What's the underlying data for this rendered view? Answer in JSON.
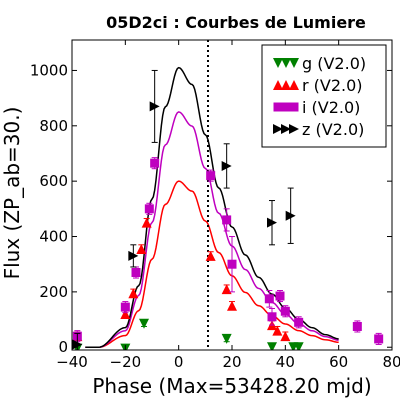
{
  "chart_data": {
    "type": "scatter",
    "title": "05D2ci : Courbes de Lumiere",
    "xlabel": "Phase (Max=53428.20 mjd)",
    "ylabel": "Flux (ZP_ab=30.)",
    "xlim": [
      -40,
      80
    ],
    "ylim": [
      -10,
      1110
    ],
    "xticks": [
      -40,
      -20,
      0,
      20,
      40,
      60,
      80
    ],
    "yticks": [
      0,
      200,
      400,
      600,
      800,
      1000
    ],
    "grid": false,
    "vline_x": 11,
    "legend_position": "top-right",
    "legend_order": [
      "g",
      "r",
      "i",
      "z"
    ],
    "series": [
      {
        "name": "g (V2.0)",
        "color": "#008000",
        "marker": "triangle-down",
        "points": [
          {
            "x": -38,
            "y": -5,
            "err": 10
          },
          {
            "x": -20,
            "y": -5,
            "err": 10
          },
          {
            "x": -13,
            "y": 85,
            "err": 10
          },
          {
            "x": 18,
            "y": 30,
            "err": 10
          },
          {
            "x": 35,
            "y": 0,
            "err": 10
          },
          {
            "x": 43,
            "y": 0,
            "err": 10
          },
          {
            "x": 45,
            "y": 0,
            "err": 10
          }
        ]
      },
      {
        "name": "r (V2.0)",
        "color": "#ff0000",
        "marker": "triangle-up",
        "points": [
          {
            "x": -38,
            "y": 40,
            "err": 15
          },
          {
            "x": -20,
            "y": 120,
            "err": 15
          },
          {
            "x": -17,
            "y": 195,
            "err": 15
          },
          {
            "x": -14,
            "y": 355,
            "err": 15
          },
          {
            "x": -12,
            "y": 450,
            "err": 15
          },
          {
            "x": 12,
            "y": 330,
            "err": 15
          },
          {
            "x": 18,
            "y": 210,
            "err": 15
          },
          {
            "x": 20,
            "y": 150,
            "err": 15
          },
          {
            "x": 35,
            "y": 80,
            "err": 15
          },
          {
            "x": 37,
            "y": 60,
            "err": 15
          },
          {
            "x": 40,
            "y": 40,
            "err": 15
          }
        ]
      },
      {
        "name": "i (V2.0)",
        "color": "#bf00bf",
        "marker": "square",
        "points": [
          {
            "x": -38,
            "y": 40,
            "err": 20
          },
          {
            "x": -20,
            "y": 145,
            "err": 20
          },
          {
            "x": -16,
            "y": 270,
            "err": 20
          },
          {
            "x": -11,
            "y": 500,
            "err": 20
          },
          {
            "x": -9,
            "y": 665,
            "err": 20
          },
          {
            "x": 12,
            "y": 620,
            "err": 20
          },
          {
            "x": 18,
            "y": 460,
            "err": 40
          },
          {
            "x": 20,
            "y": 300,
            "err": 100
          },
          {
            "x": 34,
            "y": 175,
            "err": 30
          },
          {
            "x": 35,
            "y": 110,
            "err": 30
          },
          {
            "x": 38,
            "y": 185,
            "err": 20
          },
          {
            "x": 40,
            "y": 130,
            "err": 20
          },
          {
            "x": 45,
            "y": 90,
            "err": 20
          },
          {
            "x": 67,
            "y": 75,
            "err": 20
          },
          {
            "x": 75,
            "y": 30,
            "err": 20
          }
        ]
      },
      {
        "name": "z (V2.0)",
        "color": "#000000",
        "marker": "triangle-right",
        "points": [
          {
            "x": -38,
            "y": 10,
            "err": 40
          },
          {
            "x": -17,
            "y": 330,
            "err": 40
          },
          {
            "x": -9,
            "y": 870,
            "err": 130
          },
          {
            "x": 18,
            "y": 655,
            "err": 80
          },
          {
            "x": 35,
            "y": 450,
            "err": 80
          },
          {
            "x": 42,
            "y": 475,
            "err": 100
          }
        ]
      }
    ],
    "fit_curves": [
      {
        "band": "r",
        "color": "#ff0000",
        "peak": 600
      },
      {
        "band": "i",
        "color": "#bf00bf",
        "peak": 850
      },
      {
        "band": "z",
        "color": "#000000",
        "peak": 1010
      }
    ]
  }
}
